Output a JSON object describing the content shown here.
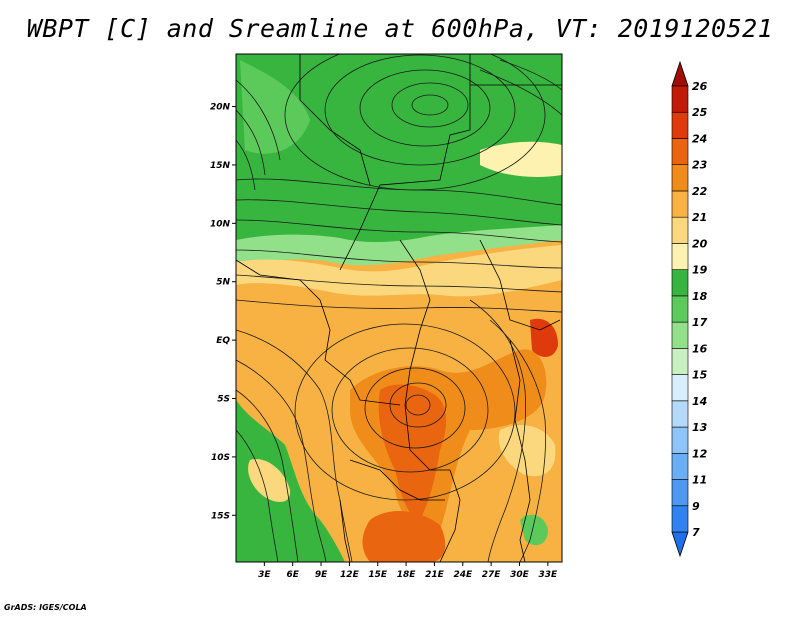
{
  "title": "WBPT [C] and Sreamline at 600hPa, VT: 2019120521",
  "footer": "GrADS: IGES/COLA",
  "map": {
    "lat_labels": [
      "20N",
      "15N",
      "10N",
      "5N",
      "EQ",
      "5S",
      "10S",
      "15S"
    ],
    "lat_values": [
      20,
      15,
      10,
      5,
      0,
      -5,
      -10,
      -15
    ],
    "lon_labels": [
      "3E",
      "6E",
      "9E",
      "12E",
      "15E",
      "18E",
      "21E",
      "24E",
      "27E",
      "30E",
      "33E"
    ],
    "lon_values": [
      3,
      6,
      9,
      12,
      15,
      18,
      21,
      24,
      27,
      30,
      33
    ],
    "lat_range": [
      -19,
      24.5
    ],
    "lon_range": [
      0,
      34.5
    ]
  },
  "colorbar": {
    "labels": [
      "7",
      "9",
      "11",
      "12",
      "13",
      "14",
      "15",
      "16",
      "17",
      "18",
      "19",
      "20",
      "21",
      "22",
      "23",
      "24",
      "25",
      "26"
    ],
    "colors": [
      "#1f6fe8",
      "#2f82ef",
      "#4c98f3",
      "#6aaef6",
      "#8ec5f8",
      "#b5daf9",
      "#d9eefc",
      "#c8f0c0",
      "#92e089",
      "#5cca5a",
      "#37b53f",
      "#fdf2b0",
      "#fbd77d",
      "#f7b243",
      "#f08d1a",
      "#ea6510",
      "#df3a0c",
      "#c21a08",
      "#a20d05"
    ]
  }
}
